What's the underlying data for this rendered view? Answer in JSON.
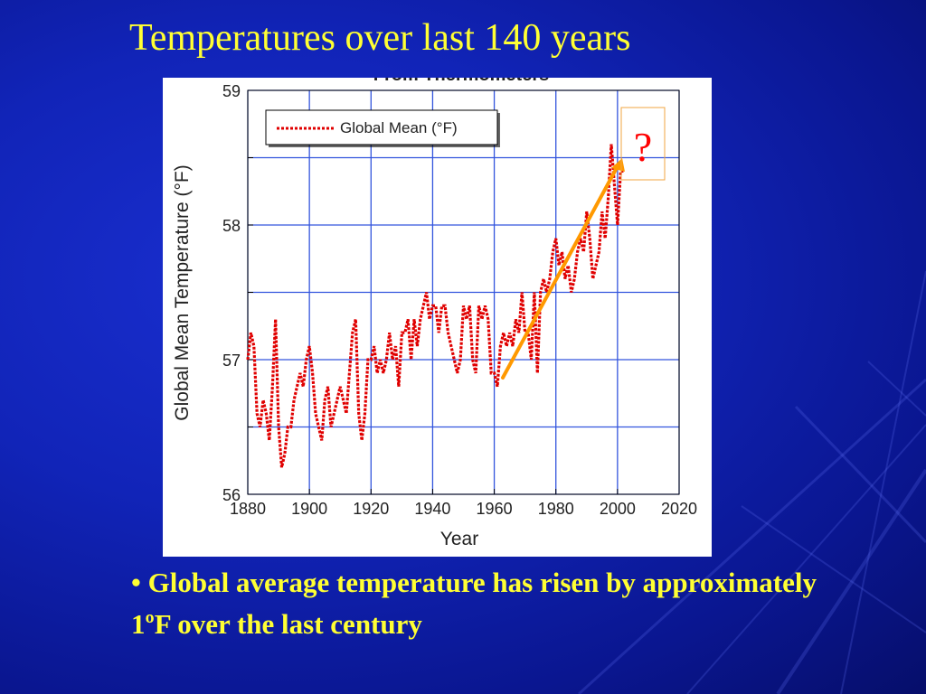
{
  "slide": {
    "title": "Temperatures over last 140 years",
    "bullet_marker": "•",
    "bullet_text": "Global average temperature has risen by approximately 1ºF over the last century",
    "callout_text": "?",
    "colors": {
      "background": "#1124b8",
      "title": "#ffff33",
      "series": "#e00000",
      "trend_arrow": "#ff9900",
      "callout_text": "#ff0000",
      "grid": "#3355dd"
    }
  },
  "chart_data": {
    "type": "line",
    "title": "From Thermometers",
    "xlabel": "Year",
    "ylabel": "Global Mean Temperature  (°F)",
    "xlim": [
      1880,
      2020
    ],
    "ylim": [
      56,
      59
    ],
    "x_ticks": [
      "1880",
      "1900",
      "1920",
      "1940",
      "1960",
      "1980",
      "2000",
      "2020"
    ],
    "y_ticks": [
      "56",
      "57",
      "58",
      "59"
    ],
    "grid": true,
    "legend_position": "top-left",
    "series": [
      {
        "name": "Global Mean (°F)",
        "style": "dashed",
        "x": [
          1880,
          1881,
          1882,
          1883,
          1884,
          1885,
          1886,
          1887,
          1888,
          1889,
          1890,
          1891,
          1892,
          1893,
          1894,
          1895,
          1896,
          1897,
          1898,
          1899,
          1900,
          1901,
          1902,
          1903,
          1904,
          1905,
          1906,
          1907,
          1908,
          1909,
          1910,
          1911,
          1912,
          1913,
          1914,
          1915,
          1916,
          1917,
          1918,
          1919,
          1920,
          1921,
          1922,
          1923,
          1924,
          1925,
          1926,
          1927,
          1928,
          1929,
          1930,
          1931,
          1932,
          1933,
          1934,
          1935,
          1936,
          1937,
          1938,
          1939,
          1940,
          1941,
          1942,
          1943,
          1944,
          1945,
          1946,
          1947,
          1948,
          1949,
          1950,
          1951,
          1952,
          1953,
          1954,
          1955,
          1956,
          1957,
          1958,
          1959,
          1960,
          1961,
          1962,
          1963,
          1964,
          1965,
          1966,
          1967,
          1968,
          1969,
          1970,
          1971,
          1972,
          1973,
          1974,
          1975,
          1976,
          1977,
          1978,
          1979,
          1980,
          1981,
          1982,
          1983,
          1984,
          1985,
          1986,
          1987,
          1988,
          1989,
          1990,
          1991,
          1992,
          1993,
          1994,
          1995,
          1996,
          1997,
          1998,
          1999,
          2000,
          2001,
          2002
        ],
        "values": [
          57.0,
          57.2,
          57.1,
          56.6,
          56.5,
          56.7,
          56.6,
          56.4,
          56.8,
          57.3,
          56.5,
          56.2,
          56.3,
          56.5,
          56.5,
          56.7,
          56.8,
          56.9,
          56.8,
          57.0,
          57.1,
          56.9,
          56.6,
          56.5,
          56.4,
          56.7,
          56.8,
          56.5,
          56.6,
          56.7,
          56.8,
          56.7,
          56.6,
          56.9,
          57.2,
          57.3,
          56.6,
          56.4,
          56.6,
          57.0,
          57.0,
          57.1,
          56.9,
          57.0,
          56.9,
          57.0,
          57.2,
          57.0,
          57.1,
          56.8,
          57.2,
          57.2,
          57.3,
          57.0,
          57.3,
          57.1,
          57.3,
          57.4,
          57.5,
          57.3,
          57.4,
          57.4,
          57.2,
          57.4,
          57.4,
          57.2,
          57.1,
          57.0,
          56.9,
          57.0,
          57.4,
          57.3,
          57.4,
          57.0,
          56.9,
          57.4,
          57.3,
          57.4,
          57.3,
          56.9,
          56.9,
          56.8,
          57.1,
          57.2,
          57.1,
          57.2,
          57.1,
          57.3,
          57.2,
          57.5,
          57.2,
          57.2,
          57.0,
          57.5,
          56.9,
          57.5,
          57.6,
          57.5,
          57.6,
          57.8,
          57.9,
          57.7,
          57.8,
          57.6,
          57.7,
          57.5,
          57.6,
          57.8,
          57.9,
          57.8,
          58.1,
          57.9,
          57.6,
          57.7,
          57.8,
          58.1,
          57.9,
          58.2,
          58.6,
          58.3,
          58.0,
          58.4,
          58.4
        ]
      }
    ]
  }
}
